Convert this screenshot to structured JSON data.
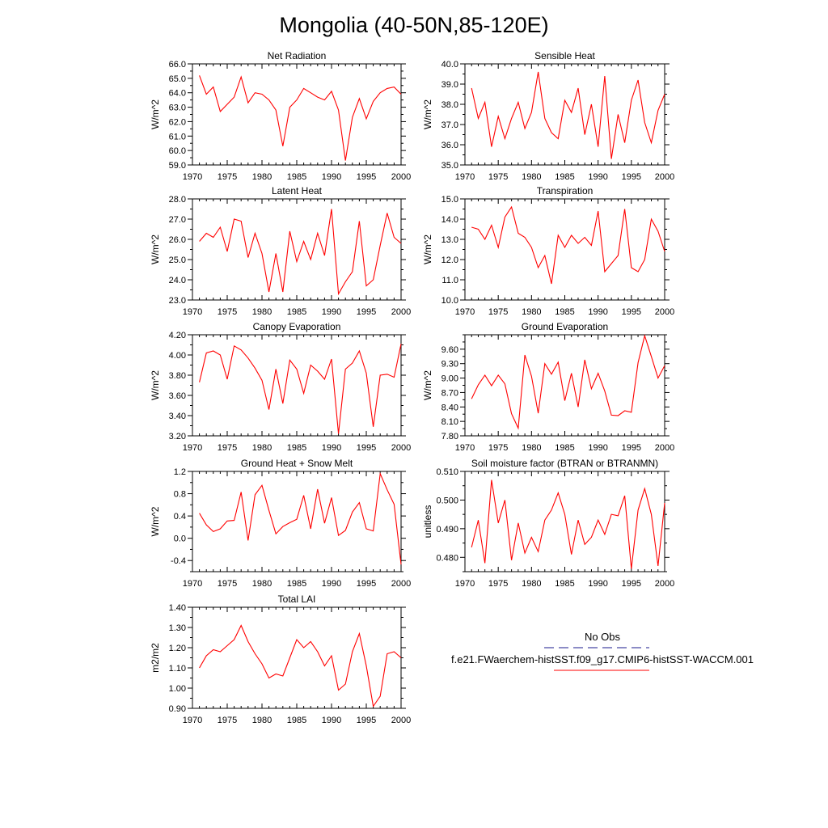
{
  "title": "Mongolia (40-50N,85-120E)",
  "legend": {
    "obs_label": "No Obs",
    "model_label": "f.e21.FWaerchem-histSST.f09_g17.CMIP6-histSST-WACCM.001",
    "obs_color": "#1a1a8c",
    "model_color": "#ff0000"
  },
  "chart_data": [
    {
      "type": "line",
      "title": "Net Radiation",
      "ylabel": "W/m^2",
      "xlim": [
        1970,
        2000
      ],
      "ylim": [
        59.0,
        66.0
      ],
      "xticks": [
        1970,
        1975,
        1980,
        1985,
        1990,
        1995,
        2000
      ],
      "yticks": [
        "59.0",
        "60.0",
        "61.0",
        "62.0",
        "63.0",
        "64.0",
        "65.0",
        "66.0"
      ],
      "series": [
        {
          "color": "#ff0000",
          "x": [
            1971,
            1972,
            1973,
            1974,
            1975,
            1976,
            1977,
            1978,
            1979,
            1980,
            1981,
            1982,
            1983,
            1984,
            1985,
            1986,
            1987,
            1988,
            1989,
            1990,
            1991,
            1992,
            1993,
            1994,
            1995,
            1996,
            1997,
            1998,
            1999,
            2000
          ],
          "values": [
            65.2,
            63.9,
            64.4,
            62.7,
            63.2,
            63.7,
            65.1,
            63.3,
            64.0,
            63.9,
            63.5,
            62.8,
            60.3,
            63.0,
            63.5,
            64.3,
            64.0,
            63.7,
            63.5,
            64.1,
            62.8,
            59.3,
            62.3,
            63.6,
            62.2,
            63.4,
            64.0,
            64.3,
            64.4,
            63.9
          ]
        }
      ]
    },
    {
      "type": "line",
      "title": "Sensible Heat",
      "ylabel": "W/m^2",
      "xlim": [
        1970,
        2000
      ],
      "ylim": [
        35.0,
        40.0
      ],
      "xticks": [
        1970,
        1975,
        1980,
        1985,
        1990,
        1995,
        2000
      ],
      "yticks": [
        "35.0",
        "36.0",
        "37.0",
        "38.0",
        "39.0",
        "40.0"
      ],
      "series": [
        {
          "color": "#ff0000",
          "x": [
            1971,
            1972,
            1973,
            1974,
            1975,
            1976,
            1977,
            1978,
            1979,
            1980,
            1981,
            1982,
            1983,
            1984,
            1985,
            1986,
            1987,
            1988,
            1989,
            1990,
            1991,
            1992,
            1993,
            1994,
            1995,
            1996,
            1997,
            1998,
            1999,
            2000
          ],
          "values": [
            38.8,
            37.3,
            38.1,
            35.9,
            37.4,
            36.3,
            37.3,
            38.1,
            36.8,
            37.6,
            39.6,
            37.3,
            36.6,
            36.3,
            38.2,
            37.6,
            38.8,
            36.5,
            38.0,
            35.9,
            39.4,
            35.3,
            37.5,
            36.1,
            38.2,
            39.2,
            37.1,
            36.1,
            37.7,
            38.5
          ]
        }
      ]
    },
    {
      "type": "line",
      "title": "Latent Heat",
      "ylabel": "W/m^2",
      "xlim": [
        1970,
        2000
      ],
      "ylim": [
        23.0,
        28.0
      ],
      "xticks": [
        1970,
        1975,
        1980,
        1985,
        1990,
        1995,
        2000
      ],
      "yticks": [
        "23.0",
        "24.0",
        "25.0",
        "26.0",
        "27.0",
        "28.0"
      ],
      "series": [
        {
          "color": "#ff0000",
          "x": [
            1971,
            1972,
            1973,
            1974,
            1975,
            1976,
            1977,
            1978,
            1979,
            1980,
            1981,
            1982,
            1983,
            1984,
            1985,
            1986,
            1987,
            1988,
            1989,
            1990,
            1991,
            1992,
            1993,
            1994,
            1995,
            1996,
            1997,
            1998,
            1999,
            2000
          ],
          "values": [
            25.9,
            26.3,
            26.1,
            26.6,
            25.4,
            27.0,
            26.9,
            25.1,
            26.3,
            25.3,
            23.4,
            25.3,
            23.4,
            26.4,
            24.9,
            25.9,
            25.0,
            26.3,
            25.2,
            27.5,
            23.3,
            23.9,
            24.4,
            26.9,
            23.7,
            24.0,
            25.7,
            27.3,
            26.1,
            25.8
          ]
        }
      ]
    },
    {
      "type": "line",
      "title": "Transpiration",
      "ylabel": "W/m^2",
      "xlim": [
        1970,
        2000
      ],
      "ylim": [
        10.0,
        15.0
      ],
      "xticks": [
        1970,
        1975,
        1980,
        1985,
        1990,
        1995,
        2000
      ],
      "yticks": [
        "10.0",
        "11.0",
        "12.0",
        "13.0",
        "14.0",
        "15.0"
      ],
      "series": [
        {
          "color": "#ff0000",
          "x": [
            1971,
            1972,
            1973,
            1974,
            1975,
            1976,
            1977,
            1978,
            1979,
            1980,
            1981,
            1982,
            1983,
            1984,
            1985,
            1986,
            1987,
            1988,
            1989,
            1990,
            1991,
            1992,
            1993,
            1994,
            1995,
            1996,
            1997,
            1998,
            1999,
            2000
          ],
          "values": [
            13.6,
            13.5,
            13.0,
            13.7,
            12.6,
            14.1,
            14.6,
            13.3,
            13.1,
            12.6,
            11.6,
            12.2,
            10.8,
            13.2,
            12.6,
            13.2,
            12.8,
            13.1,
            12.7,
            14.4,
            11.4,
            11.8,
            12.2,
            14.5,
            11.6,
            11.4,
            12.0,
            14.0,
            13.4,
            12.4
          ]
        }
      ]
    },
    {
      "type": "line",
      "title": "Canopy Evaporation",
      "ylabel": "W/m^2",
      "xlim": [
        1970,
        2000
      ],
      "ylim": [
        3.2,
        4.2
      ],
      "xticks": [
        1970,
        1975,
        1980,
        1985,
        1990,
        1995,
        2000
      ],
      "yticks": [
        "3.20",
        "3.40",
        "3.60",
        "3.80",
        "4.00",
        "4.20"
      ],
      "series": [
        {
          "color": "#ff0000",
          "x": [
            1971,
            1972,
            1973,
            1974,
            1975,
            1976,
            1977,
            1978,
            1979,
            1980,
            1981,
            1982,
            1983,
            1984,
            1985,
            1986,
            1987,
            1988,
            1989,
            1990,
            1991,
            1992,
            1993,
            1994,
            1995,
            1996,
            1997,
            1998,
            1999,
            2000
          ],
          "values": [
            3.73,
            4.02,
            4.04,
            4.0,
            3.76,
            4.09,
            4.05,
            3.97,
            3.87,
            3.75,
            3.46,
            3.86,
            3.52,
            3.95,
            3.86,
            3.62,
            3.9,
            3.84,
            3.76,
            3.96,
            3.22,
            3.86,
            3.92,
            4.04,
            3.82,
            3.29,
            3.8,
            3.81,
            3.78,
            4.11
          ]
        }
      ]
    },
    {
      "type": "line",
      "title": "Ground Evaporation",
      "ylabel": "W/m^2",
      "xlim": [
        1970,
        2000
      ],
      "ylim": [
        7.8,
        9.9
      ],
      "xticks": [
        1970,
        1975,
        1980,
        1985,
        1990,
        1995,
        2000
      ],
      "yticks": [
        "7.80",
        "8.10",
        "8.40",
        "8.70",
        "9.00",
        "9.30",
        "9.60"
      ],
      "series": [
        {
          "color": "#ff0000",
          "x": [
            1971,
            1972,
            1973,
            1974,
            1975,
            1976,
            1977,
            1978,
            1979,
            1980,
            1981,
            1982,
            1983,
            1984,
            1985,
            1986,
            1987,
            1988,
            1989,
            1990,
            1991,
            1992,
            1993,
            1994,
            1995,
            1996,
            1997,
            1998,
            1999,
            2000
          ],
          "values": [
            8.57,
            8.86,
            9.06,
            8.84,
            9.06,
            8.88,
            8.26,
            7.96,
            9.48,
            9.04,
            8.27,
            9.3,
            9.08,
            9.33,
            8.53,
            9.1,
            8.4,
            9.38,
            8.78,
            9.1,
            8.73,
            8.23,
            8.22,
            8.32,
            8.29,
            9.32,
            9.88,
            9.45,
            9.0,
            9.26
          ]
        }
      ]
    },
    {
      "type": "line",
      "title": "Ground Heat + Snow Melt",
      "ylabel": "W/m^2",
      "xlim": [
        1970,
        2000
      ],
      "ylim": [
        -0.6,
        1.2
      ],
      "xticks": [
        1970,
        1975,
        1980,
        1985,
        1990,
        1995,
        2000
      ],
      "yticks": [
        "-0.4",
        "0.0",
        "0.4",
        "0.8",
        "1.2"
      ],
      "series": [
        {
          "color": "#ff0000",
          "x": [
            1971,
            1972,
            1973,
            1974,
            1975,
            1976,
            1977,
            1978,
            1979,
            1980,
            1981,
            1982,
            1983,
            1984,
            1985,
            1986,
            1987,
            1988,
            1989,
            1990,
            1991,
            1992,
            1993,
            1994,
            1995,
            1996,
            1997,
            1998,
            1999,
            2000
          ],
          "values": [
            0.45,
            0.24,
            0.12,
            0.17,
            0.31,
            0.32,
            0.83,
            -0.04,
            0.78,
            0.95,
            0.5,
            0.08,
            0.21,
            0.28,
            0.34,
            0.77,
            0.17,
            0.88,
            0.27,
            0.73,
            0.05,
            0.14,
            0.47,
            0.64,
            0.17,
            0.13,
            1.16,
            0.87,
            0.61,
            -0.47
          ]
        }
      ]
    },
    {
      "type": "line",
      "title": "Soil moisture factor (BTRAN or BTRANMN)",
      "ylabel": "unitless",
      "xlim": [
        1970,
        2000
      ],
      "ylim": [
        0.475,
        0.51
      ],
      "xticks": [
        1970,
        1975,
        1980,
        1985,
        1990,
        1995,
        2000
      ],
      "yticks": [
        "0.480",
        "0.490",
        "0.500",
        "0.510"
      ],
      "series": [
        {
          "color": "#ff0000",
          "x": [
            1971,
            1972,
            1973,
            1974,
            1975,
            1976,
            1977,
            1978,
            1979,
            1980,
            1981,
            1982,
            1983,
            1984,
            1985,
            1986,
            1987,
            1988,
            1989,
            1990,
            1991,
            1992,
            1993,
            1994,
            1995,
            1996,
            1997,
            1998,
            1999,
            2000
          ],
          "values": [
            0.4835,
            0.493,
            0.478,
            0.507,
            0.492,
            0.5,
            0.479,
            0.492,
            0.4815,
            0.487,
            0.482,
            0.493,
            0.4965,
            0.5025,
            0.495,
            0.481,
            0.493,
            0.4845,
            0.487,
            0.493,
            0.488,
            0.495,
            0.4945,
            0.5015,
            0.476,
            0.4965,
            0.504,
            0.495,
            0.477,
            0.499
          ]
        }
      ]
    },
    {
      "type": "line",
      "title": "Total LAI",
      "ylabel": "m2/m2",
      "xlim": [
        1970,
        2000
      ],
      "ylim": [
        0.9,
        1.4
      ],
      "xticks": [
        1970,
        1975,
        1980,
        1985,
        1990,
        1995,
        2000
      ],
      "yticks": [
        "0.90",
        "1.00",
        "1.10",
        "1.20",
        "1.30",
        "1.40"
      ],
      "series": [
        {
          "color": "#ff0000",
          "x": [
            1971,
            1972,
            1973,
            1974,
            1975,
            1976,
            1977,
            1978,
            1979,
            1980,
            1981,
            1982,
            1983,
            1984,
            1985,
            1986,
            1987,
            1988,
            1989,
            1990,
            1991,
            1992,
            1993,
            1994,
            1995,
            1996,
            1997,
            1998,
            1999,
            2000
          ],
          "values": [
            1.1,
            1.16,
            1.19,
            1.18,
            1.21,
            1.24,
            1.31,
            1.23,
            1.17,
            1.12,
            1.05,
            1.07,
            1.06,
            1.15,
            1.24,
            1.2,
            1.23,
            1.18,
            1.11,
            1.16,
            0.99,
            1.02,
            1.18,
            1.27,
            1.11,
            0.91,
            0.96,
            1.17,
            1.18,
            1.15
          ]
        }
      ]
    }
  ]
}
